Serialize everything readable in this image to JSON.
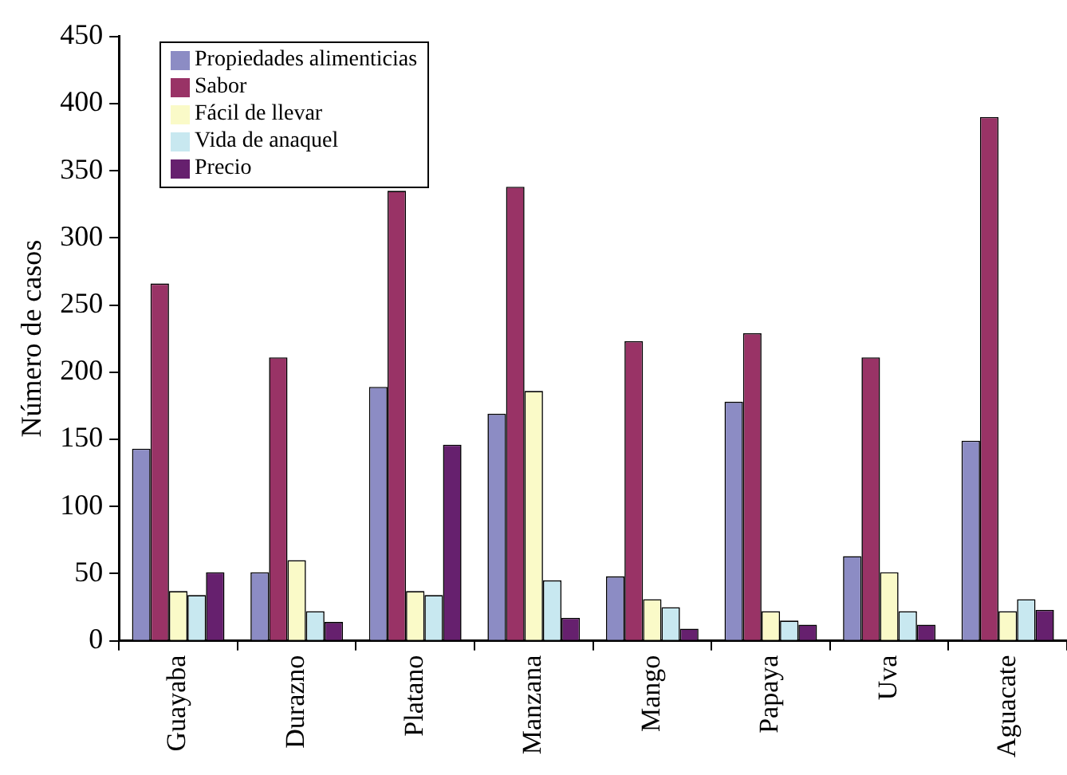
{
  "chart_data": {
    "type": "bar",
    "ylabel": "Número de casos",
    "categories": [
      "Guayaba",
      "Durazno",
      "Platano",
      "Manzana",
      "Mango",
      "Papaya",
      "Uva",
      "Aguacate"
    ],
    "series": [
      {
        "name": "Propiedades alimenticias",
        "color": "#8c8cc4",
        "values": [
          143,
          51,
          189,
          169,
          48,
          178,
          63,
          149
        ]
      },
      {
        "name": "Sabor",
        "color": "#993366",
        "values": [
          266,
          211,
          335,
          338,
          223,
          229,
          211,
          390
        ]
      },
      {
        "name": "Fácil de llevar",
        "color": "#fafac8",
        "values": [
          37,
          60,
          37,
          186,
          31,
          22,
          51,
          22
        ]
      },
      {
        "name": "Vida de anaquel",
        "color": "#c8e8f0",
        "values": [
          34,
          22,
          34,
          45,
          25,
          15,
          22,
          31
        ]
      },
      {
        "name": "Precio",
        "color": "#66206e",
        "values": [
          51,
          14,
          146,
          17,
          9,
          12,
          12,
          23
        ]
      }
    ],
    "ylim": [
      0,
      450
    ],
    "yticks": [
      0,
      50,
      100,
      150,
      200,
      250,
      300,
      350,
      400,
      450
    ],
    "grid": false,
    "legend": "top left"
  }
}
